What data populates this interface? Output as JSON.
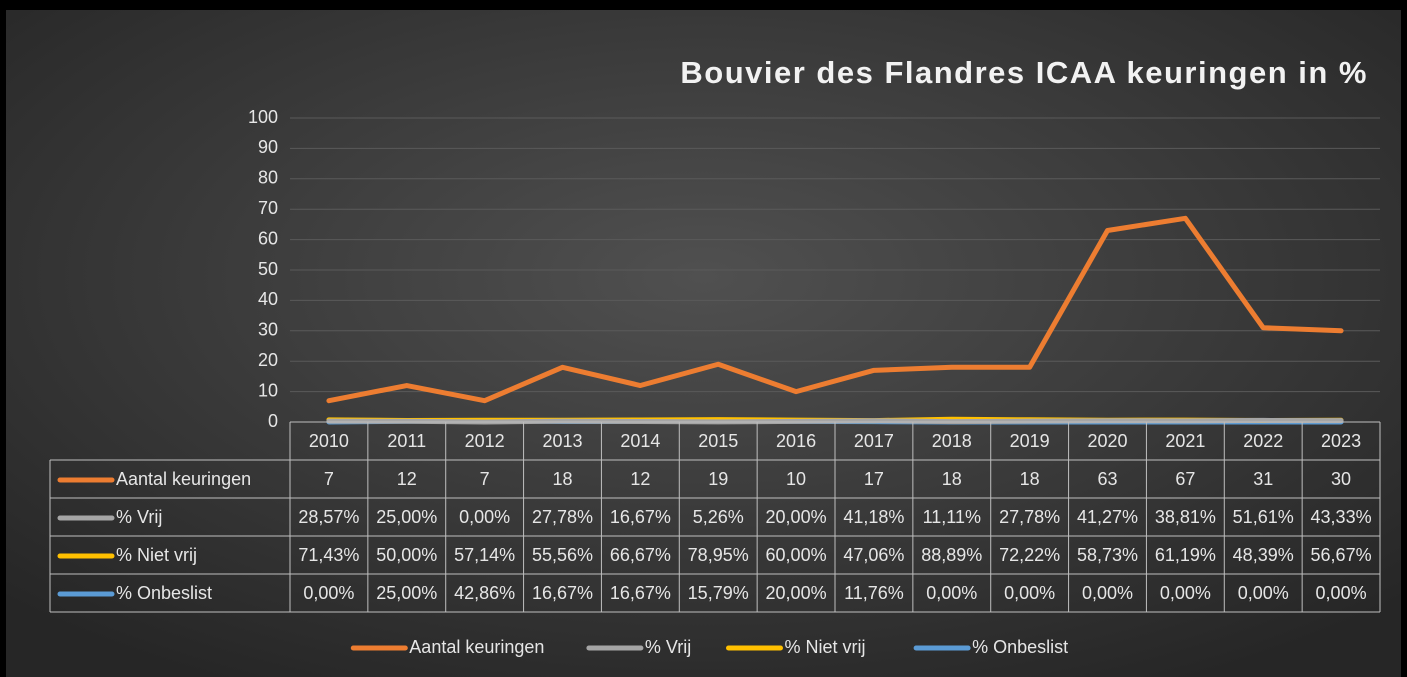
{
  "chart_data": {
    "type": "line",
    "title": "Bouvier des Flandres ICAA keuringen in %",
    "categories": [
      "2010",
      "2011",
      "2012",
      "2013",
      "2014",
      "2015",
      "2016",
      "2017",
      "2018",
      "2019",
      "2020",
      "2021",
      "2022",
      "2023"
    ],
    "ylim": [
      0,
      100
    ],
    "yticks": [
      0,
      10,
      20,
      30,
      40,
      50,
      60,
      70,
      80,
      90,
      100
    ],
    "grid": true,
    "legend": "bottom",
    "series": [
      {
        "name": "Aantal keuringen",
        "color": "#ed7d31",
        "values": [
          7,
          12,
          7,
          18,
          12,
          19,
          10,
          17,
          18,
          18,
          63,
          67,
          31,
          30
        ]
      },
      {
        "name": "% Vrij",
        "color": "#a5a5a5",
        "values": [
          0.2857,
          0.25,
          0,
          0.2778,
          0.1667,
          0.0526,
          0.2,
          0.4118,
          0.1111,
          0.2778,
          0.4127,
          0.3881,
          0.5161,
          0.4333
        ],
        "value_labels": [
          "28,57%",
          "25,00%",
          "0,00%",
          "27,78%",
          "16,67%",
          "5,26%",
          "20,00%",
          "41,18%",
          "11,11%",
          "27,78%",
          "41,27%",
          "38,81%",
          "51,61%",
          "43,33%"
        ]
      },
      {
        "name": "% Niet vrij",
        "color": "#ffc000",
        "values": [
          0.7143,
          0.5,
          0.5714,
          0.5556,
          0.6667,
          0.7895,
          0.6,
          0.4706,
          0.8889,
          0.7222,
          0.5873,
          0.6119,
          0.4839,
          0.5667
        ],
        "value_labels": [
          "71,43%",
          "50,00%",
          "57,14%",
          "55,56%",
          "66,67%",
          "78,95%",
          "60,00%",
          "47,06%",
          "88,89%",
          "72,22%",
          "58,73%",
          "61,19%",
          "48,39%",
          "56,67%"
        ]
      },
      {
        "name": "% Onbeslist",
        "color": "#5b9bd5",
        "values": [
          0,
          0.25,
          0.4286,
          0.1667,
          0.1667,
          0.1579,
          0.2,
          0.1176,
          0,
          0,
          0,
          0,
          0,
          0
        ],
        "value_labels": [
          "0,00%",
          "25,00%",
          "42,86%",
          "16,67%",
          "16,67%",
          "15,79%",
          "20,00%",
          "11,76%",
          "0,00%",
          "0,00%",
          "0,00%",
          "0,00%",
          "0,00%",
          "0,00%"
        ]
      }
    ]
  }
}
